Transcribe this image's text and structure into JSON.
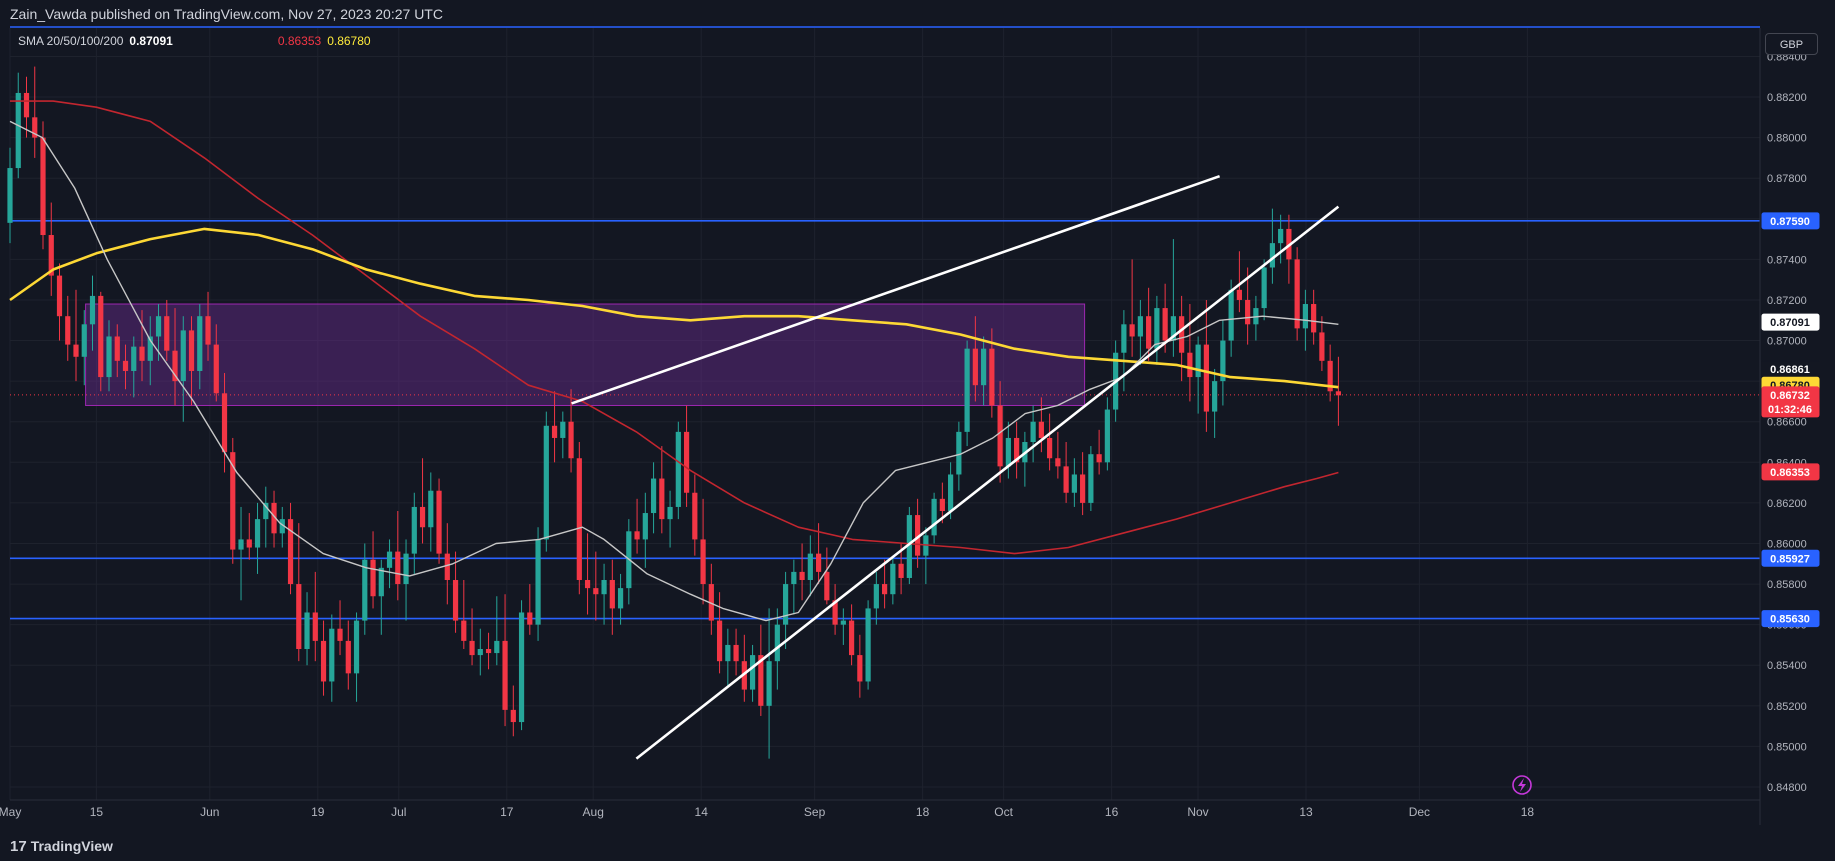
{
  "header": {
    "publisher_text": "Zain_Vawda published on TradingView.com, Nov 27, 2023 20:27 UTC"
  },
  "indicator": {
    "label": "SMA 20/50/100/200",
    "value_20": "0.87091",
    "value_100": "0.86353",
    "value_200": "0.86780"
  },
  "currency_button": "GBP",
  "footer": {
    "brand": "TradingView",
    "brand_mark": "17"
  },
  "colors": {
    "background": "#131722",
    "bull": "#26a69a",
    "bear": "#f23645",
    "sma20": "#c7c7c7",
    "sma100": "#c2262f",
    "sma200": "#fdd835",
    "horizontal_line": "#2962ff",
    "trendline": "#ffffff",
    "zone": "#6a2c91"
  },
  "chart_data": {
    "type": "candlestick",
    "title": "",
    "ylim": [
      0.848,
      0.8855
    ],
    "y_ticks": [
      "0.84800",
      "0.85000",
      "0.85200",
      "0.85400",
      "0.85600",
      "0.85800",
      "0.86000",
      "0.86200",
      "0.86400",
      "0.86600",
      "0.86800",
      "0.87000",
      "0.87200",
      "0.87400",
      "0.87600",
      "0.87800",
      "0.88000",
      "0.88200",
      "0.88400"
    ],
    "x_ticks": [
      "May",
      "15",
      "Jun",
      "19",
      "Jul",
      "17",
      "Aug",
      "14",
      "Sep",
      "18",
      "Oct",
      "16",
      "Nov",
      "13",
      "Dec",
      "18"
    ],
    "price_labels": [
      {
        "name": "support-resistance-high",
        "text": "0.87590",
        "value": 0.8759,
        "bg": "#2962ff",
        "fg": "#ffffff"
      },
      {
        "name": "sma20",
        "text": "0.87091",
        "value": 0.87091,
        "bg": "#ffffff",
        "fg": "#131722"
      },
      {
        "name": "level",
        "text": "0.86861",
        "value": 0.86861,
        "bg": "#131722",
        "fg": "#ffffff"
      },
      {
        "name": "sma200",
        "text": "0.86780",
        "value": 0.8678,
        "bg": "#fdd835",
        "fg": "#131722"
      },
      {
        "name": "last-price",
        "text": "0.86732",
        "value": 0.86732,
        "bg": "#f23645",
        "fg": "#ffffff",
        "sub": "01:32:46"
      },
      {
        "name": "sma100",
        "text": "0.86353",
        "value": 0.86353,
        "bg": "#f23645",
        "fg": "#ffffff"
      },
      {
        "name": "support-mid",
        "text": "0.85927",
        "value": 0.85927,
        "bg": "#2962ff",
        "fg": "#ffffff"
      },
      {
        "name": "support-low",
        "text": "0.85630",
        "value": 0.8563,
        "bg": "#2962ff",
        "fg": "#ffffff"
      }
    ],
    "horizontal_levels": [
      0.8759,
      0.85927,
      0.8563
    ],
    "last_price": 0.86732,
    "zone": {
      "x_start_day": 14,
      "x_end_day": 199,
      "y_low": 0.8668,
      "y_high": 0.8718
    },
    "trendlines": [
      {
        "x1_day": 104,
        "y1": 0.8669,
        "x2_day": 224,
        "y2": 0.8781
      },
      {
        "x1_day": 116,
        "y1": 0.8494,
        "x2_day": 246,
        "y2": 0.8766
      }
    ],
    "candles": [
      [
        0.8758,
        0.8795,
        0.8748,
        0.8785
      ],
      [
        0.8785,
        0.8832,
        0.878,
        0.8822
      ],
      [
        0.8822,
        0.883,
        0.88,
        0.881
      ],
      [
        0.881,
        0.8835,
        0.879,
        0.88
      ],
      [
        0.88,
        0.8808,
        0.8745,
        0.8752
      ],
      [
        0.8752,
        0.8768,
        0.8722,
        0.8732
      ],
      [
        0.8732,
        0.8738,
        0.87,
        0.8712
      ],
      [
        0.8712,
        0.8722,
        0.869,
        0.8698
      ],
      [
        0.8698,
        0.8725,
        0.868,
        0.8692
      ],
      [
        0.8692,
        0.8715,
        0.8678,
        0.8708
      ],
      [
        0.8708,
        0.8732,
        0.8695,
        0.8722
      ],
      [
        0.8722,
        0.8724,
        0.8675,
        0.8682
      ],
      [
        0.8682,
        0.871,
        0.8675,
        0.8702
      ],
      [
        0.8702,
        0.8708,
        0.8682,
        0.869
      ],
      [
        0.869,
        0.8698,
        0.8676,
        0.8685
      ],
      [
        0.8685,
        0.8702,
        0.8672,
        0.8697
      ],
      [
        0.8697,
        0.8715,
        0.868,
        0.869
      ],
      [
        0.869,
        0.8712,
        0.8678,
        0.8702
      ],
      [
        0.8702,
        0.8718,
        0.869,
        0.8712
      ],
      [
        0.8712,
        0.872,
        0.869,
        0.8695
      ],
      [
        0.8695,
        0.8716,
        0.8668,
        0.868
      ],
      [
        0.868,
        0.8712,
        0.866,
        0.8705
      ],
      [
        0.8705,
        0.8712,
        0.8668,
        0.8685
      ],
      [
        0.8685,
        0.8718,
        0.8676,
        0.8712
      ],
      [
        0.8712,
        0.8724,
        0.869,
        0.8698
      ],
      [
        0.8698,
        0.8708,
        0.867,
        0.8674
      ],
      [
        0.8674,
        0.8684,
        0.8635,
        0.8645
      ],
      [
        0.8645,
        0.8652,
        0.859,
        0.8597
      ],
      [
        0.8597,
        0.8618,
        0.8572,
        0.8602
      ],
      [
        0.8602,
        0.8615,
        0.8592,
        0.8598
      ],
      [
        0.8598,
        0.862,
        0.8585,
        0.8612
      ],
      [
        0.8612,
        0.8628,
        0.8598,
        0.862
      ],
      [
        0.862,
        0.8626,
        0.8598,
        0.8605
      ],
      [
        0.8605,
        0.8618,
        0.8598,
        0.8612
      ],
      [
        0.8612,
        0.862,
        0.8575,
        0.858
      ],
      [
        0.858,
        0.861,
        0.8542,
        0.8548
      ],
      [
        0.8548,
        0.8576,
        0.854,
        0.8566
      ],
      [
        0.8566,
        0.8586,
        0.8542,
        0.8552
      ],
      [
        0.8552,
        0.8562,
        0.8525,
        0.8532
      ],
      [
        0.8532,
        0.8565,
        0.8522,
        0.8558
      ],
      [
        0.8558,
        0.8572,
        0.8545,
        0.8552
      ],
      [
        0.8552,
        0.8562,
        0.8528,
        0.8536
      ],
      [
        0.8536,
        0.8566,
        0.8522,
        0.8562
      ],
      [
        0.8562,
        0.86,
        0.8555,
        0.8592
      ],
      [
        0.8592,
        0.8606,
        0.8568,
        0.8574
      ],
      [
        0.8574,
        0.8592,
        0.8555,
        0.8588
      ],
      [
        0.8588,
        0.8602,
        0.8578,
        0.8596
      ],
      [
        0.8596,
        0.8616,
        0.8572,
        0.858
      ],
      [
        0.858,
        0.8602,
        0.8562,
        0.8595
      ],
      [
        0.8595,
        0.8625,
        0.8585,
        0.8618
      ],
      [
        0.8618,
        0.8642,
        0.86,
        0.8608
      ],
      [
        0.8608,
        0.8635,
        0.8596,
        0.8626
      ],
      [
        0.8626,
        0.8632,
        0.859,
        0.8595
      ],
      [
        0.8595,
        0.861,
        0.857,
        0.8582
      ],
      [
        0.8582,
        0.8596,
        0.8556,
        0.8562
      ],
      [
        0.8562,
        0.8582,
        0.8548,
        0.8552
      ],
      [
        0.8552,
        0.8568,
        0.854,
        0.8545
      ],
      [
        0.8545,
        0.8558,
        0.8535,
        0.8548
      ],
      [
        0.8548,
        0.8556,
        0.8538,
        0.8546
      ],
      [
        0.8546,
        0.8574,
        0.854,
        0.8552
      ],
      [
        0.8552,
        0.8575,
        0.851,
        0.8518
      ],
      [
        0.8518,
        0.853,
        0.8505,
        0.8512
      ],
      [
        0.8512,
        0.8572,
        0.8508,
        0.8566
      ],
      [
        0.8566,
        0.858,
        0.8555,
        0.856
      ],
      [
        0.856,
        0.8608,
        0.8552,
        0.8602
      ],
      [
        0.8602,
        0.8665,
        0.8596,
        0.8658
      ],
      [
        0.8658,
        0.8675,
        0.864,
        0.8652
      ],
      [
        0.8652,
        0.8665,
        0.8642,
        0.866
      ],
      [
        0.866,
        0.8676,
        0.8635,
        0.8642
      ],
      [
        0.8642,
        0.865,
        0.8575,
        0.8582
      ],
      [
        0.8582,
        0.8605,
        0.8565,
        0.8578
      ],
      [
        0.8578,
        0.8596,
        0.8562,
        0.8575
      ],
      [
        0.8575,
        0.859,
        0.856,
        0.8582
      ],
      [
        0.8582,
        0.8592,
        0.8555,
        0.8568
      ],
      [
        0.8568,
        0.8585,
        0.856,
        0.8578
      ],
      [
        0.8578,
        0.8612,
        0.857,
        0.8606
      ],
      [
        0.8606,
        0.8622,
        0.8595,
        0.8602
      ],
      [
        0.8602,
        0.8625,
        0.8588,
        0.8615
      ],
      [
        0.8615,
        0.864,
        0.8605,
        0.8632
      ],
      [
        0.8632,
        0.8648,
        0.8605,
        0.8612
      ],
      [
        0.8612,
        0.8626,
        0.8598,
        0.8618
      ],
      [
        0.8618,
        0.866,
        0.8612,
        0.8655
      ],
      [
        0.8655,
        0.8668,
        0.8618,
        0.8625
      ],
      [
        0.8625,
        0.8634,
        0.8594,
        0.8602
      ],
      [
        0.8602,
        0.8622,
        0.857,
        0.858
      ],
      [
        0.858,
        0.859,
        0.8555,
        0.8562
      ],
      [
        0.8562,
        0.8576,
        0.8536,
        0.8542
      ],
      [
        0.8542,
        0.8558,
        0.853,
        0.855
      ],
      [
        0.855,
        0.8558,
        0.8535,
        0.8542
      ],
      [
        0.8542,
        0.8555,
        0.8522,
        0.8528
      ],
      [
        0.8528,
        0.855,
        0.8522,
        0.8545
      ],
      [
        0.8545,
        0.856,
        0.8515,
        0.852
      ],
      [
        0.852,
        0.8568,
        0.8494,
        0.8542
      ],
      [
        0.8542,
        0.8568,
        0.8528,
        0.856
      ],
      [
        0.856,
        0.8586,
        0.8548,
        0.858
      ],
      [
        0.858,
        0.8592,
        0.8565,
        0.8586
      ],
      [
        0.8586,
        0.86,
        0.8572,
        0.8582
      ],
      [
        0.8582,
        0.8604,
        0.8574,
        0.8595
      ],
      [
        0.8595,
        0.861,
        0.858,
        0.8586
      ],
      [
        0.8586,
        0.8598,
        0.857,
        0.8572
      ],
      [
        0.8572,
        0.858,
        0.8555,
        0.856
      ],
      [
        0.856,
        0.8568,
        0.855,
        0.8562
      ],
      [
        0.8562,
        0.857,
        0.854,
        0.8545
      ],
      [
        0.8545,
        0.8555,
        0.8524,
        0.8532
      ],
      [
        0.8532,
        0.8572,
        0.8528,
        0.8568
      ],
      [
        0.8568,
        0.8586,
        0.856,
        0.858
      ],
      [
        0.858,
        0.8592,
        0.8568,
        0.8575
      ],
      [
        0.8575,
        0.8594,
        0.857,
        0.859
      ],
      [
        0.859,
        0.86,
        0.8575,
        0.8583
      ],
      [
        0.8583,
        0.8618,
        0.858,
        0.8614
      ],
      [
        0.8614,
        0.8622,
        0.8588,
        0.8594
      ],
      [
        0.8594,
        0.8608,
        0.858,
        0.8604
      ],
      [
        0.8604,
        0.8625,
        0.86,
        0.8622
      ],
      [
        0.8622,
        0.863,
        0.861,
        0.8616
      ],
      [
        0.8616,
        0.864,
        0.8612,
        0.8634
      ],
      [
        0.8634,
        0.866,
        0.8626,
        0.8655
      ],
      [
        0.8655,
        0.87,
        0.8648,
        0.8696
      ],
      [
        0.8696,
        0.8712,
        0.867,
        0.8678
      ],
      [
        0.8678,
        0.8702,
        0.8668,
        0.8696
      ],
      [
        0.8696,
        0.8706,
        0.8662,
        0.8668
      ],
      [
        0.8668,
        0.868,
        0.863,
        0.8638
      ],
      [
        0.8638,
        0.866,
        0.8632,
        0.8652
      ],
      [
        0.8652,
        0.866,
        0.8632,
        0.864
      ],
      [
        0.864,
        0.8655,
        0.8628,
        0.865
      ],
      [
        0.865,
        0.8668,
        0.864,
        0.866
      ],
      [
        0.866,
        0.8672,
        0.8645,
        0.8652
      ],
      [
        0.8652,
        0.8664,
        0.8636,
        0.8642
      ],
      [
        0.8642,
        0.8655,
        0.8632,
        0.8638
      ],
      [
        0.8638,
        0.865,
        0.862,
        0.8625
      ],
      [
        0.8625,
        0.8642,
        0.8618,
        0.8634
      ],
      [
        0.8634,
        0.8645,
        0.8614,
        0.862
      ],
      [
        0.862,
        0.8648,
        0.8616,
        0.8644
      ],
      [
        0.8644,
        0.8656,
        0.8634,
        0.864
      ],
      [
        0.864,
        0.8672,
        0.8636,
        0.8666
      ],
      [
        0.8666,
        0.87,
        0.866,
        0.8694
      ],
      [
        0.8694,
        0.8715,
        0.8675,
        0.8708
      ],
      [
        0.8708,
        0.874,
        0.8692,
        0.8702
      ],
      [
        0.8702,
        0.872,
        0.8688,
        0.8712
      ],
      [
        0.8712,
        0.8726,
        0.869,
        0.8696
      ],
      [
        0.8696,
        0.8722,
        0.8688,
        0.8716
      ],
      [
        0.8716,
        0.8728,
        0.8694,
        0.87
      ],
      [
        0.87,
        0.875,
        0.8692,
        0.8712
      ],
      [
        0.8712,
        0.8722,
        0.868,
        0.8694
      ],
      [
        0.8694,
        0.8718,
        0.867,
        0.8682
      ],
      [
        0.8682,
        0.8702,
        0.8664,
        0.8698
      ],
      [
        0.8698,
        0.872,
        0.8655,
        0.8665
      ],
      [
        0.8665,
        0.8686,
        0.8652,
        0.868
      ],
      [
        0.868,
        0.871,
        0.8668,
        0.87
      ],
      [
        0.87,
        0.873,
        0.8692,
        0.8725
      ],
      [
        0.8725,
        0.8744,
        0.8714,
        0.872
      ],
      [
        0.872,
        0.8736,
        0.8698,
        0.8708
      ],
      [
        0.8708,
        0.8722,
        0.87,
        0.8716
      ],
      [
        0.8716,
        0.874,
        0.871,
        0.8736
      ],
      [
        0.8736,
        0.8765,
        0.8728,
        0.8748
      ],
      [
        0.8748,
        0.8762,
        0.8738,
        0.8755
      ],
      [
        0.8755,
        0.8762,
        0.8728,
        0.874
      ],
      [
        0.874,
        0.8746,
        0.87,
        0.8706
      ],
      [
        0.8706,
        0.8725,
        0.8695,
        0.8718
      ],
      [
        0.8718,
        0.8725,
        0.8698,
        0.8704
      ],
      [
        0.8704,
        0.8712,
        0.8685,
        0.869
      ],
      [
        0.869,
        0.8698,
        0.867,
        0.8675
      ],
      [
        0.8675,
        0.8692,
        0.8658,
        0.8673
      ]
    ],
    "sma20": [
      [
        0,
        0.8808
      ],
      [
        6,
        0.88
      ],
      [
        12,
        0.8775
      ],
      [
        18,
        0.874
      ],
      [
        26,
        0.87
      ],
      [
        34,
        0.867
      ],
      [
        42,
        0.8635
      ],
      [
        50,
        0.861
      ],
      [
        58,
        0.8595
      ],
      [
        66,
        0.8588
      ],
      [
        74,
        0.8584
      ],
      [
        82,
        0.859
      ],
      [
        90,
        0.86
      ],
      [
        98,
        0.8602
      ],
      [
        106,
        0.8608
      ],
      [
        110,
        0.8602
      ],
      [
        118,
        0.8585
      ],
      [
        126,
        0.8575
      ],
      [
        132,
        0.8568
      ],
      [
        140,
        0.8562
      ],
      [
        146,
        0.8566
      ],
      [
        152,
        0.859
      ],
      [
        158,
        0.862
      ],
      [
        164,
        0.8636
      ],
      [
        170,
        0.864
      ],
      [
        176,
        0.8644
      ],
      [
        182,
        0.8652
      ],
      [
        188,
        0.8664
      ],
      [
        194,
        0.8668
      ],
      [
        200,
        0.8676
      ],
      [
        206,
        0.8682
      ],
      [
        212,
        0.8698
      ],
      [
        218,
        0.8702
      ],
      [
        224,
        0.871
      ],
      [
        232,
        0.8712
      ],
      [
        240,
        0.871
      ],
      [
        246,
        0.8708
      ]
    ],
    "sma100": [
      [
        0,
        0.8818
      ],
      [
        8,
        0.8818
      ],
      [
        16,
        0.8815
      ],
      [
        26,
        0.8808
      ],
      [
        36,
        0.879
      ],
      [
        46,
        0.877
      ],
      [
        56,
        0.8752
      ],
      [
        66,
        0.8732
      ],
      [
        76,
        0.8712
      ],
      [
        86,
        0.8696
      ],
      [
        96,
        0.8678
      ],
      [
        106,
        0.867
      ],
      [
        116,
        0.8655
      ],
      [
        126,
        0.8636
      ],
      [
        136,
        0.862
      ],
      [
        146,
        0.8608
      ],
      [
        156,
        0.8602
      ],
      [
        166,
        0.86
      ],
      [
        176,
        0.8598
      ],
      [
        186,
        0.8595
      ],
      [
        196,
        0.8598
      ],
      [
        206,
        0.8605
      ],
      [
        216,
        0.8612
      ],
      [
        226,
        0.862
      ],
      [
        236,
        0.8628
      ],
      [
        242,
        0.8632
      ],
      [
        246,
        0.8635
      ]
    ],
    "sma200": [
      [
        0,
        0.872
      ],
      [
        8,
        0.8735
      ],
      [
        16,
        0.8743
      ],
      [
        26,
        0.875
      ],
      [
        36,
        0.8755
      ],
      [
        46,
        0.8752
      ],
      [
        56,
        0.8745
      ],
      [
        66,
        0.8735
      ],
      [
        76,
        0.8728
      ],
      [
        86,
        0.8722
      ],
      [
        96,
        0.872
      ],
      [
        106,
        0.8717
      ],
      [
        116,
        0.8712
      ],
      [
        126,
        0.871
      ],
      [
        136,
        0.8712
      ],
      [
        146,
        0.8712
      ],
      [
        156,
        0.871
      ],
      [
        166,
        0.8708
      ],
      [
        176,
        0.8703
      ],
      [
        186,
        0.8696
      ],
      [
        196,
        0.8692
      ],
      [
        206,
        0.869
      ],
      [
        216,
        0.8688
      ],
      [
        226,
        0.8682
      ],
      [
        236,
        0.868
      ],
      [
        246,
        0.8677
      ]
    ]
  }
}
